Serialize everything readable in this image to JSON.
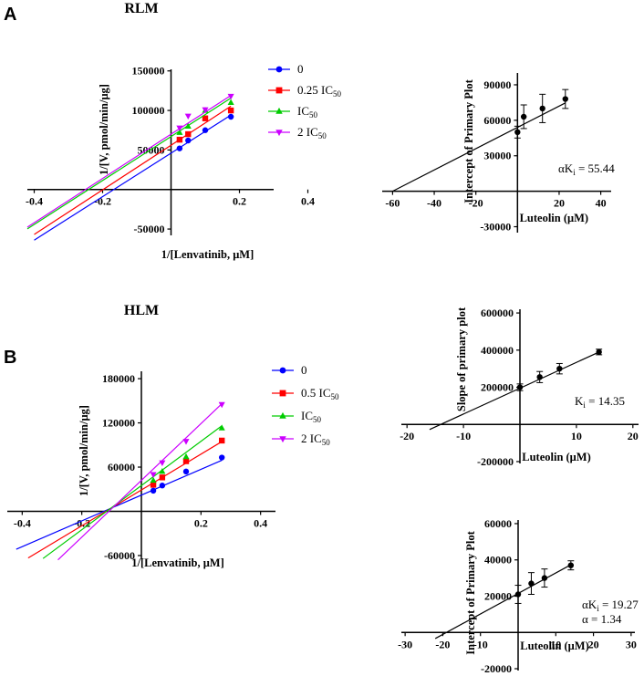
{
  "panel_labels": {
    "a": "A",
    "b": "B"
  },
  "section_titles": {
    "rlm": "RLM",
    "hlm": "HLM"
  },
  "chart_data": [
    {
      "id": "rlm-lineweaver",
      "type": "scatter",
      "title": "RLM",
      "xlabel": "1/[Lenvatinib, μM]",
      "ylabel": "1/[V, pmol/min/μg]",
      "xlim": [
        -0.42,
        0.3
      ],
      "ylim": [
        -58000,
        152000
      ],
      "xticks": [
        -0.4,
        -0.2,
        0.2,
        0.4
      ],
      "xtick_labels": [
        "-0.4",
        "-0.2",
        "0.2",
        "0.4"
      ],
      "yticks": [
        -50000,
        50000,
        100000,
        150000
      ],
      "ytick_labels": [
        "-50000",
        "50000",
        "100000",
        "150000"
      ],
      "x": [
        0.025,
        0.05,
        0.1,
        0.175
      ],
      "series": [
        {
          "name": "0",
          "sub": "",
          "color": "#0000ff",
          "marker": "circle",
          "values": [
            52000,
            62000,
            75000,
            92000
          ],
          "slope": 275000,
          "intercept": 46000,
          "fit_from": -0.4
        },
        {
          "name": "0.25 IC",
          "sub": "50",
          "color": "#ff0000",
          "marker": "square",
          "values": [
            63000,
            70000,
            90000,
            100000
          ],
          "slope": 282000,
          "intercept": 56000,
          "fit_from": -0.4
        },
        {
          "name": "IC",
          "sub": "50",
          "color": "#00cc00",
          "marker": "triangle-up",
          "values": [
            72000,
            80000,
            100000,
            110000
          ],
          "slope": 278000,
          "intercept": 67000,
          "fit_from": -0.42
        },
        {
          "name": "2 IC",
          "sub": "50",
          "color": "#cc00ff",
          "marker": "triangle-down",
          "values": [
            78000,
            93000,
            101000,
            118000
          ],
          "slope": 280000,
          "intercept": 70000,
          "fit_from": -0.42
        }
      ]
    },
    {
      "id": "rlm-secondary",
      "type": "scatter",
      "xlabel": "Luteolin (μM)",
      "ylabel": "Intercept of Primary Plot",
      "xlim": [
        -65,
        45
      ],
      "ylim": [
        -35000,
        100000
      ],
      "xticks": [
        -60,
        -40,
        -20,
        20,
        40
      ],
      "xtick_labels": [
        "-60",
        "-40",
        "-20",
        "20",
        "40"
      ],
      "yticks": [
        -30000,
        30000,
        60000,
        90000
      ],
      "ytick_labels": [
        "-30000",
        "30000",
        "60000",
        "90000"
      ],
      "points": [
        {
          "x": 0,
          "y": 50000,
          "err": 5000
        },
        {
          "x": 3,
          "y": 63000,
          "err": 10000
        },
        {
          "x": 12,
          "y": 70000,
          "err": 12000
        },
        {
          "x": 23,
          "y": 78000,
          "err": 8000
        }
      ],
      "fit": {
        "slope": 900,
        "intercept": 54000,
        "x_from": -60,
        "x_to": 23
      },
      "annotation": {
        "prefix": "αK",
        "sub": "i",
        "value": " = 55.44"
      }
    },
    {
      "id": "hlm-lineweaver",
      "type": "scatter",
      "title": "HLM",
      "xlabel": "1/[Lenvatinib, μM]",
      "ylabel": "1/[V, pmol/min/μg]",
      "xlim": [
        -0.45,
        0.45
      ],
      "ylim": [
        -65000,
        190000
      ],
      "xticks": [
        -0.4,
        -0.2,
        0.2,
        0.4
      ],
      "xtick_labels": [
        "-0.4",
        "-0.2",
        "0.2",
        "0.4"
      ],
      "yticks": [
        -60000,
        60000,
        120000,
        180000
      ],
      "ytick_labels": [
        "-60000",
        "60000",
        "120000",
        "180000"
      ],
      "x": [
        0.04,
        0.07,
        0.15,
        0.27
      ],
      "series": [
        {
          "name": "0",
          "sub": "",
          "color": "#0000ff",
          "marker": "circle",
          "values": [
            28000,
            35000,
            54000,
            73000
          ],
          "slope": 175000,
          "intercept": 22000,
          "fit_from": -0.42
        },
        {
          "name": "0.5 IC",
          "sub": "50",
          "color": "#ff0000",
          "marker": "square",
          "values": [
            36000,
            46000,
            68000,
            96000
          ],
          "slope": 243000,
          "intercept": 29000,
          "fit_from": -0.38
        },
        {
          "name": "IC",
          "sub": "50",
          "color": "#00cc00",
          "marker": "triangle-up",
          "values": [
            42000,
            54000,
            74000,
            113000
          ],
          "slope": 300000,
          "intercept": 35000,
          "fit_from": -0.33
        },
        {
          "name": "2 IC",
          "sub": "50",
          "color": "#cc00ff",
          "marker": "triangle-down",
          "values": [
            50000,
            66000,
            95000,
            145000
          ],
          "slope": 385000,
          "intercept": 42000,
          "fit_from": -0.28
        }
      ]
    },
    {
      "id": "hlm-slope",
      "type": "scatter",
      "xlabel": "Luteolin (μM)",
      "ylabel": "Slope of primary plot",
      "xlim": [
        -21,
        21
      ],
      "ylim": [
        -210000,
        620000
      ],
      "xticks": [
        -20,
        -10,
        10,
        20
      ],
      "xtick_labels": [
        "-20",
        "-10",
        "10",
        "20"
      ],
      "yticks": [
        -200000,
        200000,
        400000,
        600000
      ],
      "ytick_labels": [
        "-200000",
        "200000",
        "400000",
        "600000"
      ],
      "points": [
        {
          "x": 0,
          "y": 200000,
          "err": 18000
        },
        {
          "x": 3.5,
          "y": 255000,
          "err": 30000
        },
        {
          "x": 7,
          "y": 300000,
          "err": 28000
        },
        {
          "x": 14,
          "y": 390000,
          "err": 15000
        }
      ],
      "fit": {
        "slope": 13900,
        "intercept": 195000,
        "x_from": -16,
        "x_to": 14
      },
      "annotation": {
        "prefix": "K",
        "sub": "i",
        "value": " = 14.35"
      }
    },
    {
      "id": "hlm-intercept",
      "type": "scatter",
      "xlabel": "Luteolin (μM)",
      "ylabel": "Intercept of Primary Plot",
      "xlim": [
        -31,
        31
      ],
      "ylim": [
        -21000,
        62000
      ],
      "xticks": [
        -30,
        -20,
        -10,
        10,
        20,
        30
      ],
      "xtick_labels": [
        "-30",
        "-20",
        "-10",
        "10",
        "20",
        "30"
      ],
      "yticks": [
        -20000,
        20000,
        40000,
        60000
      ],
      "ytick_labels": [
        "-20000",
        "20000",
        "40000",
        "60000"
      ],
      "points": [
        {
          "x": 0,
          "y": 21000,
          "err": 5000
        },
        {
          "x": 3.5,
          "y": 27000,
          "err": 6000
        },
        {
          "x": 7,
          "y": 30000,
          "err": 5000
        },
        {
          "x": 14,
          "y": 37000,
          "err": 2500
        }
      ],
      "fit": {
        "slope": 1130,
        "intercept": 21500,
        "x_from": -22,
        "x_to": 14
      },
      "annotation": {
        "prefix": "αK",
        "sub": "i",
        "value": " = 19.27",
        "line2": "α = 1.34"
      }
    }
  ]
}
